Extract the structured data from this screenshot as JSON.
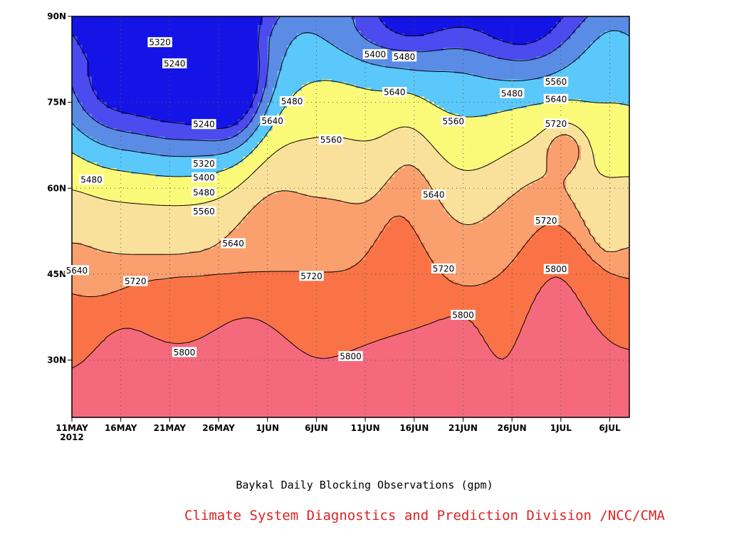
{
  "chart_data": {
    "type": "heatmap",
    "subtype": "filled-contour (time-latitude Hovmöller)",
    "title": "Baykal Daily Blocking Observations (gpm)",
    "credit": "Climate System Diagnostics and Prediction Division /NCC/CMA",
    "xlabel": "",
    "ylabel": "",
    "x_ticks": [
      "11MAY",
      "16MAY",
      "21MAY",
      "26MAY",
      "1JUN",
      "6JUN",
      "11JUN",
      "16JUN",
      "21JUN",
      "26JUN",
      "1JUL",
      "6JUL"
    ],
    "x_year_label": "2012",
    "x_range_days": [
      0,
      57
    ],
    "y_ticks": [
      "30N",
      "45N",
      "60N",
      "75N",
      "90N"
    ],
    "ylim": [
      20,
      90
    ],
    "grid": true,
    "grid_style": "dotted",
    "levels": [
      5240,
      5320,
      5400,
      5480,
      5560,
      5640,
      5720,
      5800
    ],
    "fill_colors": {
      "below_5240": "#1414e6",
      "5240_5320": "#4b4bf0",
      "5320_5400": "#5a8ce6",
      "5400_5480": "#5ac8fa",
      "5480_5560": "#fafa78",
      "5560_5640": "#fae19b",
      "5640_5720": "#fa9f6e",
      "5720_5800": "#fa7346",
      "above_5800": "#f5697d"
    },
    "contour_labels": [
      {
        "text": "5320",
        "day": 9.0,
        "lat": 85.5
      },
      {
        "text": "5240",
        "day": 10.5,
        "lat": 81.8
      },
      {
        "text": "5240",
        "day": 13.5,
        "lat": 71.2
      },
      {
        "text": "5320",
        "day": 13.5,
        "lat": 64.3
      },
      {
        "text": "5400",
        "day": 13.5,
        "lat": 61.9
      },
      {
        "text": "5480",
        "day": 13.5,
        "lat": 59.3
      },
      {
        "text": "5560",
        "day": 13.5,
        "lat": 56.0
      },
      {
        "text": "5640",
        "day": 16.5,
        "lat": 50.4
      },
      {
        "text": "5480",
        "day": 2.0,
        "lat": 61.5
      },
      {
        "text": "5640",
        "day": 0.5,
        "lat": 45.7
      },
      {
        "text": "5720",
        "day": 6.5,
        "lat": 43.8
      },
      {
        "text": "5800",
        "day": 11.5,
        "lat": 31.4
      },
      {
        "text": "5480",
        "day": 22.5,
        "lat": 75.2
      },
      {
        "text": "5640",
        "day": 20.5,
        "lat": 71.8
      },
      {
        "text": "5560",
        "day": 26.5,
        "lat": 68.5
      },
      {
        "text": "5720",
        "day": 24.5,
        "lat": 44.7
      },
      {
        "text": "5800",
        "day": 28.5,
        "lat": 30.7
      },
      {
        "text": "5400",
        "day": 31.0,
        "lat": 83.4
      },
      {
        "text": "5480",
        "day": 34.0,
        "lat": 83.0
      },
      {
        "text": "5640",
        "day": 33.0,
        "lat": 76.8
      },
      {
        "text": "5560",
        "day": 39.0,
        "lat": 71.7
      },
      {
        "text": "5640",
        "day": 37.0,
        "lat": 58.9
      },
      {
        "text": "5720",
        "day": 38.0,
        "lat": 46.0
      },
      {
        "text": "5800",
        "day": 40.0,
        "lat": 37.9
      },
      {
        "text": "5480",
        "day": 45.0,
        "lat": 76.6
      },
      {
        "text": "5560",
        "day": 49.5,
        "lat": 78.6
      },
      {
        "text": "5640",
        "day": 49.5,
        "lat": 75.6
      },
      {
        "text": "5720",
        "day": 49.5,
        "lat": 71.3
      },
      {
        "text": "5720",
        "day": 48.5,
        "lat": 54.4
      },
      {
        "text": "5800",
        "day": 49.5,
        "lat": 45.9
      }
    ],
    "local_features": [
      {
        "type": "closed-max",
        "level": 5800,
        "center_day": 50.5,
        "center_lat": 67.0
      },
      {
        "type": "closed-min",
        "level": 5240,
        "center_day": 16.5,
        "center_lat": 78.0
      },
      {
        "type": "closed-min",
        "level": 5480,
        "center_day": 49.5,
        "center_lat": 86.0
      }
    ]
  }
}
